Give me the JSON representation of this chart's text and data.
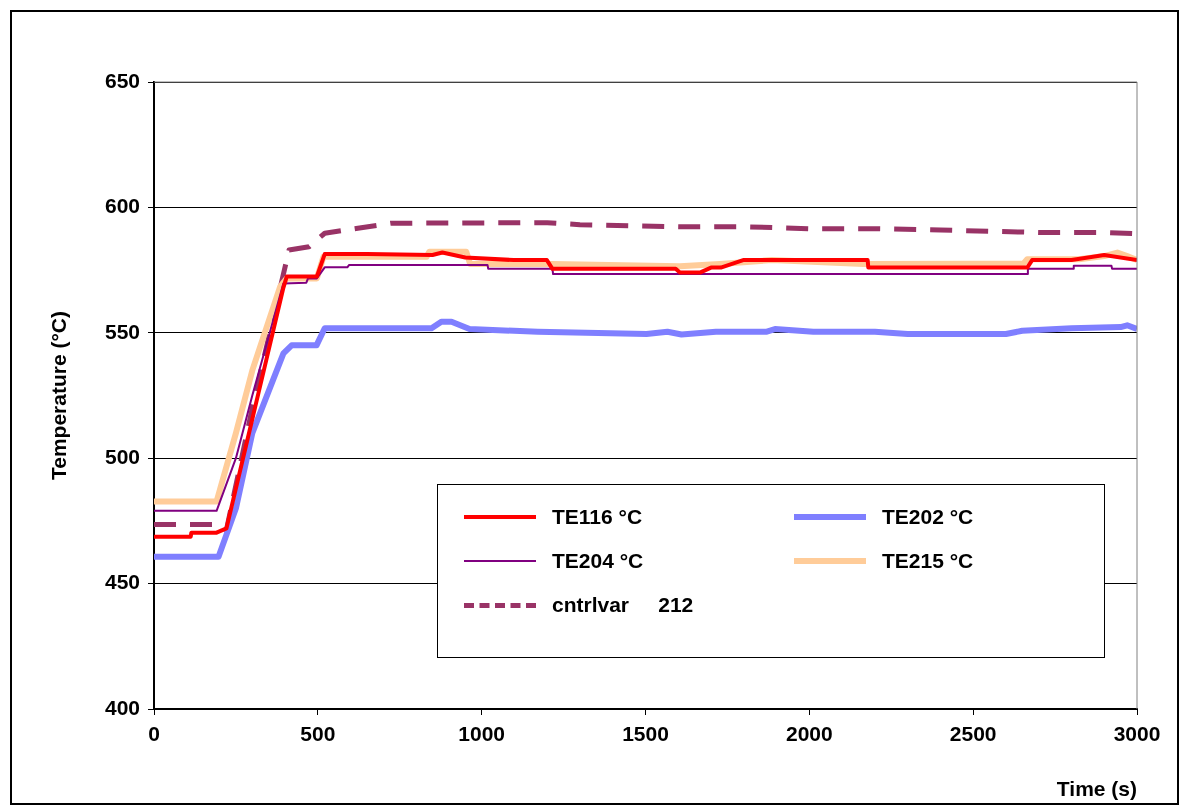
{
  "chart_data": {
    "type": "line",
    "xlabel": "Time (s)",
    "ylabel": "Temperature (°C)",
    "xlim": [
      0,
      3000
    ],
    "xticks": [
      0,
      500,
      1000,
      1500,
      2000,
      2500,
      3000
    ],
    "ylim": [
      400,
      650
    ],
    "yticks": [
      400,
      450,
      500,
      550,
      600,
      650
    ],
    "grid": "y",
    "legend": "bottom right",
    "marker": "none",
    "series": [
      {
        "name": "TE116 °C",
        "color": "#ff0000",
        "line_style": "solid",
        "x": [
          0,
          112,
          114,
          191,
          221,
          395,
          405,
          497,
          521,
          650,
          850,
          880,
          950,
          1098,
          1199,
          1216,
          1592,
          1605,
          1666,
          1700,
          1730,
          1798,
          1872,
          2000,
          2178,
          2180,
          2665,
          2680,
          2800,
          2900,
          3000
        ],
        "values": [
          468.7,
          468.7,
          470.3,
          470.3,
          472,
          568,
          572.4,
          572.4,
          581.4,
          581.4,
          581,
          582,
          580,
          579,
          579,
          575.5,
          575.5,
          574,
          574,
          576,
          576,
          579,
          579,
          579,
          579,
          576,
          576,
          579,
          579,
          581,
          579
        ]
      },
      {
        "name": "TE202 °C",
        "color": "#7f7fff",
        "line_style": "solid",
        "x": [
          0,
          197,
          250,
          300,
          395,
          420,
          496,
          521,
          847,
          877,
          908,
          963,
          1171,
          1503,
          1567,
          1610,
          1715,
          1868,
          1895,
          2012,
          2081,
          2200,
          2300,
          2600,
          2650,
          2800,
          2950,
          2970,
          3000
        ],
        "values": [
          460.7,
          460.7,
          480,
          510,
          541.8,
          545,
          545,
          551.8,
          551.8,
          554.4,
          554.4,
          551.5,
          550.4,
          549.5,
          550.4,
          549.3,
          550.4,
          550.4,
          551.5,
          550.4,
          550.4,
          550.4,
          549.5,
          549.5,
          550.8,
          551.8,
          552.3,
          553,
          551.5
        ]
      },
      {
        "name": "TE204 °C",
        "color": "#800080",
        "line_style": "solid",
        "x": [
          0,
          191,
          250,
          300,
          395,
          465,
          470,
          497,
          521,
          590,
          595,
          1018,
          1020,
          1216,
          1218,
          2665,
          2667,
          2805,
          2807,
          2922,
          2924,
          3000
        ],
        "values": [
          479,
          479,
          500,
          525,
          569.7,
          570,
          571.7,
          571.7,
          576.1,
          576.1,
          577,
          577,
          575.5,
          575.5,
          573.4,
          573.4,
          575.5,
          575.5,
          576.7,
          576.7,
          575.5,
          575.5
        ]
      },
      {
        "name": "TE215 °C",
        "color": "#ffcc99",
        "line_style": "solid",
        "x": [
          0,
          191,
          250,
          300,
          385,
          405,
          497,
          517,
          832,
          840,
          953,
          965,
          1215,
          1605,
          1727,
          1885,
          2165,
          2494,
          2653,
          2665,
          2823,
          2900,
          2940,
          2970,
          3000
        ],
        "values": [
          482.7,
          482.7,
          510,
          535,
          568.4,
          571.7,
          571.7,
          580.3,
          580.3,
          582.3,
          582.3,
          577.4,
          577.4,
          576.5,
          577.4,
          579,
          577.4,
          577.5,
          577.5,
          579.3,
          579.3,
          580.6,
          582,
          580.6,
          579
        ]
      },
      {
        "name": "cntrlvar     212",
        "color": "#993366",
        "line_style": "dashed",
        "x": [
          0,
          191,
          221,
          300,
          412,
          473,
          521,
          622,
          724,
          1200,
          1300,
          1600,
          1800,
          2000,
          2200,
          2400,
          2700,
          2900,
          3000
        ],
        "values": [
          473.6,
          473.6,
          471.4,
          520,
          583,
          584.3,
          589.7,
          591.7,
          593.7,
          593.9,
          593.1,
          592.3,
          592.3,
          591.5,
          591.5,
          591,
          590,
          590,
          589.5
        ]
      }
    ]
  }
}
